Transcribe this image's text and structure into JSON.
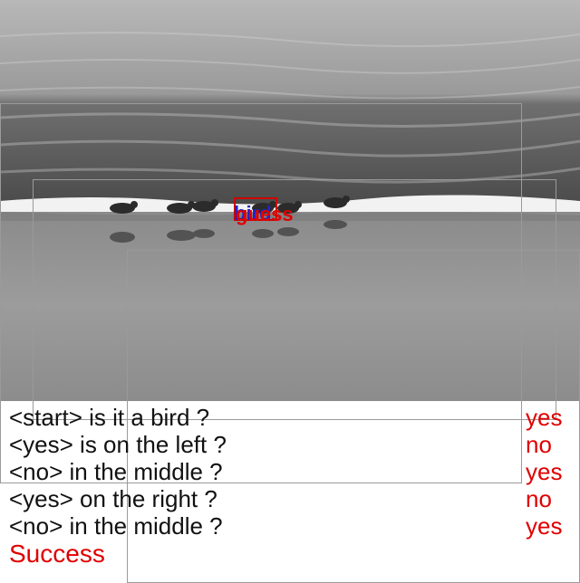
{
  "labels": {
    "under": "bird",
    "over": "guess"
  },
  "colors": {
    "answer": "#e00000",
    "question": "#111111",
    "box": "#d00000",
    "label_under": "#2222cc"
  },
  "dialogue": [
    {
      "question": "<start> is it a bird ?",
      "answer": "yes"
    },
    {
      "question": "<yes> is on the left ?",
      "answer": "no"
    },
    {
      "question": "<no> in the middle ?",
      "answer": "yes"
    },
    {
      "question": "<yes> on the right ?",
      "answer": "no"
    },
    {
      "question": "<no> in the middle ?",
      "answer": "yes"
    }
  ],
  "result": "Success"
}
